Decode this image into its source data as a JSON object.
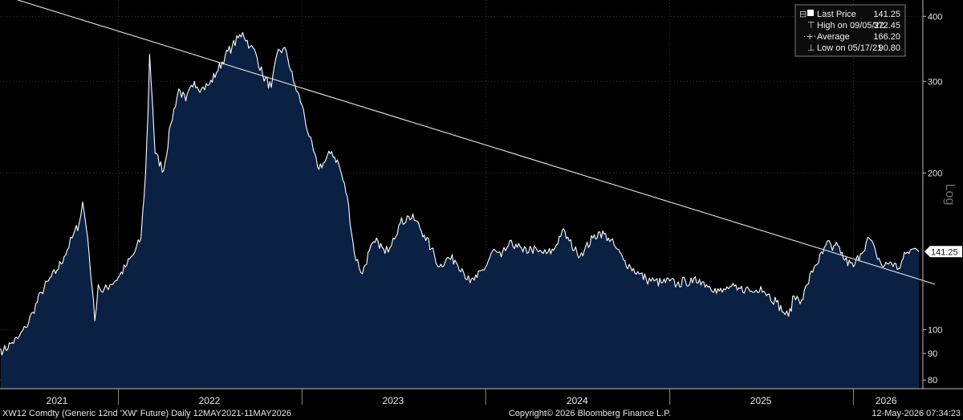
{
  "chart_data": {
    "type": "area",
    "scale": "Log",
    "yticks": [
      80,
      90,
      100,
      200,
      300,
      400
    ],
    "ytick_labels": [
      "80",
      "90",
      "100",
      "200",
      "300",
      "400"
    ],
    "ylim": [
      77,
      430
    ],
    "xlim": [
      "2021-05-12",
      "2026-05-11"
    ],
    "year_labels": [
      {
        "label": "2021",
        "date": "2021-09-01"
      },
      {
        "label": "2022",
        "date": "2022-07-01"
      },
      {
        "label": "2023",
        "date": "2023-07-01"
      },
      {
        "label": "2024",
        "date": "2024-07-01"
      },
      {
        "label": "2025",
        "date": "2025-07-01"
      },
      {
        "label": "2026",
        "date": "2026-03-07"
      }
    ],
    "year_separators": [
      "2022-01-01",
      "2023-01-01",
      "2024-01-01",
      "2025-01-01",
      "2026-01-01"
    ],
    "grid": true,
    "series": [
      {
        "name": "Last Price",
        "color": "#ffffff",
        "fill": "#0a2143",
        "points": [
          [
            "2021-05-12",
            92
          ],
          [
            "2021-05-17",
            90.8
          ],
          [
            "2021-06-01",
            94
          ],
          [
            "2021-06-15",
            96
          ],
          [
            "2021-07-01",
            101
          ],
          [
            "2021-07-15",
            108
          ],
          [
            "2021-08-01",
            118
          ],
          [
            "2021-08-15",
            124
          ],
          [
            "2021-09-01",
            130
          ],
          [
            "2021-09-15",
            138
          ],
          [
            "2021-10-01",
            150
          ],
          [
            "2021-10-15",
            160
          ],
          [
            "2021-10-22",
            176
          ],
          [
            "2021-11-01",
            150
          ],
          [
            "2021-11-10",
            120
          ],
          [
            "2021-11-15",
            104
          ],
          [
            "2021-11-22",
            122
          ],
          [
            "2021-12-01",
            118
          ],
          [
            "2021-12-15",
            122
          ],
          [
            "2022-01-01",
            126
          ],
          [
            "2022-01-15",
            132
          ],
          [
            "2022-02-01",
            140
          ],
          [
            "2022-02-15",
            150
          ],
          [
            "2022-02-24",
            200
          ],
          [
            "2022-03-01",
            262
          ],
          [
            "2022-03-04",
            338
          ],
          [
            "2022-03-10",
            270
          ],
          [
            "2022-03-15",
            218
          ],
          [
            "2022-04-01",
            202
          ],
          [
            "2022-04-15",
            248
          ],
          [
            "2022-05-01",
            290
          ],
          [
            "2022-05-15",
            275
          ],
          [
            "2022-06-01",
            300
          ],
          [
            "2022-06-15",
            290
          ],
          [
            "2022-07-01",
            296
          ],
          [
            "2022-07-15",
            312
          ],
          [
            "2022-08-01",
            335
          ],
          [
            "2022-08-15",
            350
          ],
          [
            "2022-09-05",
            372.45
          ],
          [
            "2022-09-20",
            350
          ],
          [
            "2022-10-01",
            340
          ],
          [
            "2022-10-15",
            308
          ],
          [
            "2022-11-01",
            292
          ],
          [
            "2022-11-15",
            346
          ],
          [
            "2022-12-01",
            342
          ],
          [
            "2022-12-15",
            300
          ],
          [
            "2023-01-01",
            270
          ],
          [
            "2023-01-15",
            235
          ],
          [
            "2023-02-01",
            205
          ],
          [
            "2023-02-15",
            210
          ],
          [
            "2023-03-01",
            220
          ],
          [
            "2023-03-15",
            208
          ],
          [
            "2023-04-01",
            180
          ],
          [
            "2023-04-15",
            140
          ],
          [
            "2023-05-01",
            128
          ],
          [
            "2023-05-15",
            142
          ],
          [
            "2023-06-01",
            148
          ],
          [
            "2023-06-15",
            140
          ],
          [
            "2023-07-01",
            150
          ],
          [
            "2023-07-15",
            160
          ],
          [
            "2023-08-01",
            165
          ],
          [
            "2023-08-15",
            162
          ],
          [
            "2023-09-01",
            152
          ],
          [
            "2023-09-15",
            143
          ],
          [
            "2023-10-01",
            132
          ],
          [
            "2023-10-15",
            137
          ],
          [
            "2023-11-01",
            136
          ],
          [
            "2023-11-15",
            131
          ],
          [
            "2023-12-01",
            123
          ],
          [
            "2023-12-15",
            126
          ],
          [
            "2024-01-01",
            132
          ],
          [
            "2024-01-15",
            142
          ],
          [
            "2024-02-01",
            138
          ],
          [
            "2024-02-15",
            145
          ],
          [
            "2024-03-01",
            146
          ],
          [
            "2024-03-15",
            141
          ],
          [
            "2024-04-01",
            143
          ],
          [
            "2024-04-15",
            141
          ],
          [
            "2024-05-01",
            140
          ],
          [
            "2024-05-15",
            142
          ],
          [
            "2024-06-01",
            155
          ],
          [
            "2024-06-15",
            148
          ],
          [
            "2024-07-01",
            140
          ],
          [
            "2024-07-15",
            142
          ],
          [
            "2024-08-01",
            150
          ],
          [
            "2024-08-15",
            154
          ],
          [
            "2024-09-01",
            150
          ],
          [
            "2024-09-15",
            144
          ],
          [
            "2024-10-01",
            136
          ],
          [
            "2024-10-15",
            132
          ],
          [
            "2024-11-01",
            128
          ],
          [
            "2024-11-15",
            125
          ],
          [
            "2024-12-01",
            124
          ],
          [
            "2024-12-15",
            123
          ],
          [
            "2025-01-01",
            124
          ],
          [
            "2025-01-15",
            122
          ],
          [
            "2025-02-01",
            124
          ],
          [
            "2025-02-15",
            123
          ],
          [
            "2025-03-01",
            125
          ],
          [
            "2025-03-15",
            122
          ],
          [
            "2025-04-01",
            120
          ],
          [
            "2025-04-15",
            118
          ],
          [
            "2025-05-01",
            121
          ],
          [
            "2025-05-15",
            119
          ],
          [
            "2025-06-01",
            120
          ],
          [
            "2025-06-15",
            118
          ],
          [
            "2025-07-01",
            121
          ],
          [
            "2025-07-15",
            117
          ],
          [
            "2025-08-01",
            113
          ],
          [
            "2025-08-15",
            108
          ],
          [
            "2025-08-25",
            106
          ],
          [
            "2025-09-05",
            116
          ],
          [
            "2025-09-20",
            114
          ],
          [
            "2025-10-01",
            122
          ],
          [
            "2025-10-15",
            132
          ],
          [
            "2025-11-01",
            140
          ],
          [
            "2025-11-10",
            148
          ],
          [
            "2025-11-20",
            142
          ],
          [
            "2025-12-01",
            145
          ],
          [
            "2025-12-15",
            136
          ],
          [
            "2026-01-01",
            132
          ],
          [
            "2026-01-15",
            140
          ],
          [
            "2026-02-01",
            150
          ],
          [
            "2026-02-15",
            140
          ],
          [
            "2026-03-01",
            132
          ],
          [
            "2026-03-15",
            135
          ],
          [
            "2026-04-01",
            131
          ],
          [
            "2026-04-15",
            140
          ],
          [
            "2026-05-01",
            143
          ],
          [
            "2026-05-11",
            141.25
          ]
        ]
      }
    ],
    "trendline": {
      "from": [
        "2021-06-15",
        430
      ],
      "to": [
        "2026-05-11",
        125
      ]
    },
    "last_value_tag": "141.25",
    "scale_label": "Log"
  },
  "legend": {
    "rows": [
      {
        "symbol": "■",
        "label": "Last Price",
        "value": "141.25"
      },
      {
        "symbol": "⊤",
        "label": "High on 09/05/22",
        "value": "372.45"
      },
      {
        "symbol": "·+·",
        "label": "Average",
        "value": "166.20"
      },
      {
        "symbol": "⊥",
        "label": "Low on 05/17/21",
        "value": "90.80"
      }
    ]
  },
  "footer": {
    "left": "XW12 Comdty (Generic 12nd 'XW' Future) Daily 12MAY2021-11MAY2026",
    "center": "Copyright© 2026 Bloomberg Finance L.P.",
    "right": "12-May-2026 07:34:23"
  },
  "colors": {
    "background": "#000000",
    "area_fill": "#0a2143",
    "line": "#ffffff",
    "grid": "#3c3c3c",
    "text": "#e6e6e6"
  }
}
